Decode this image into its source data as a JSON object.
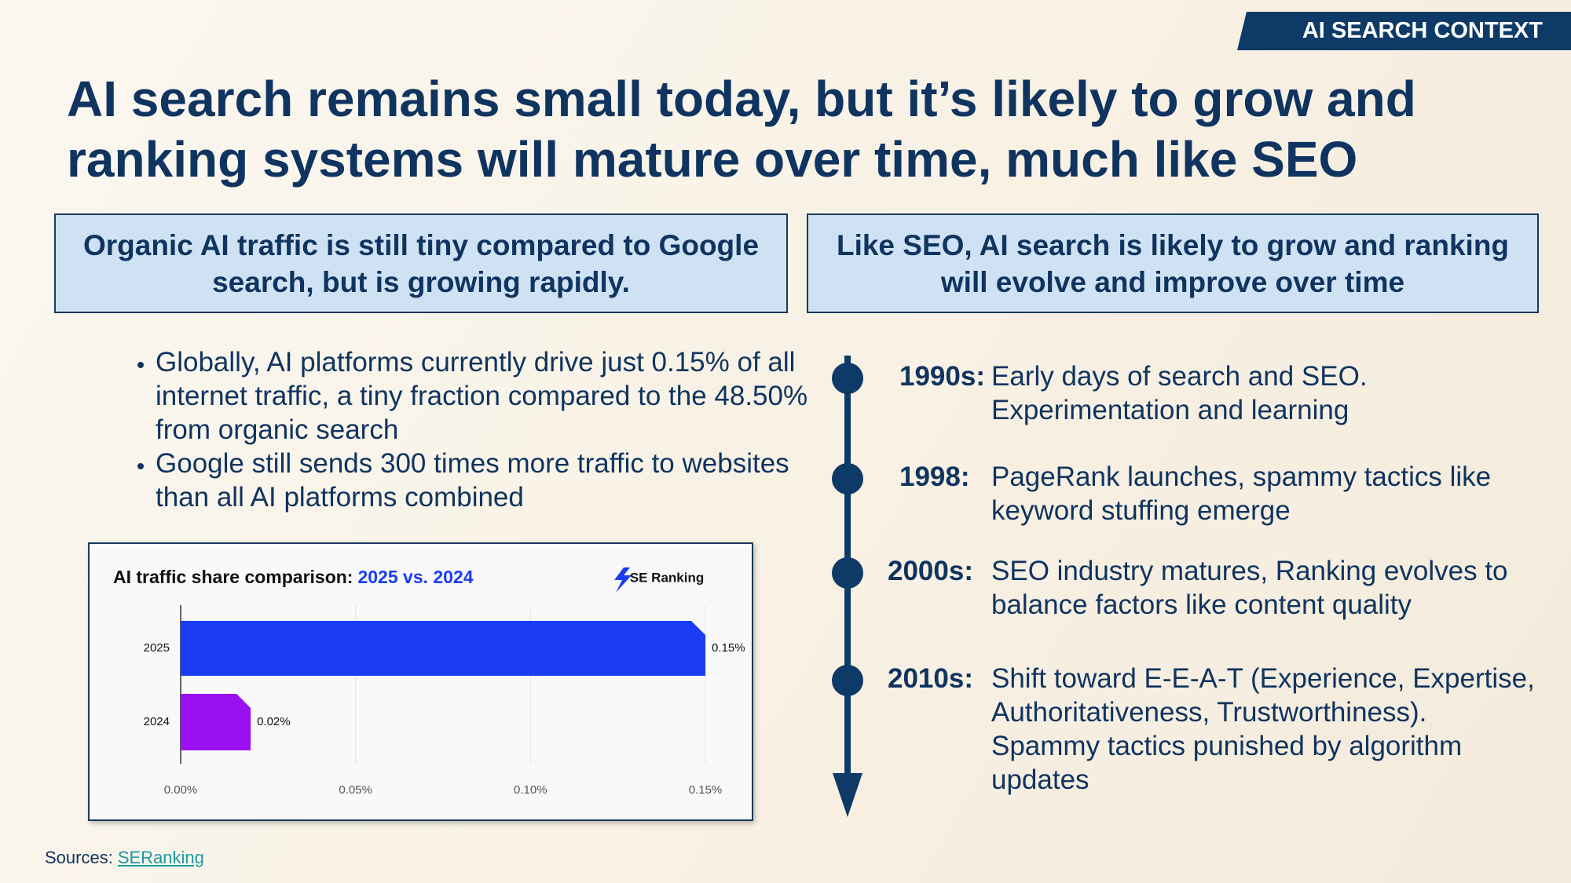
{
  "header": {
    "tag": "AI SEARCH CONTEXT",
    "title": "AI search remains small today, but it’s likely to grow and ranking systems will mature over time, much like SEO"
  },
  "left": {
    "heading": "Organic AI traffic is still tiny compared to Google search, but is growing rapidly.",
    "bullets": [
      "Globally, AI platforms currently drive just 0.15% of all internet traffic, a tiny fraction compared to the 48.50% from organic search",
      "Google still sends 300 times more traffic to websites than all AI platforms combined"
    ]
  },
  "chart_data": {
    "type": "hbar",
    "title": "AI traffic share comparison:",
    "title_highlight": "2025 vs. 2024",
    "brand": "SE Ranking",
    "categories": [
      "2025",
      "2024"
    ],
    "values": [
      0.15,
      0.02
    ],
    "value_labels": [
      "0.15%",
      "0.02%"
    ],
    "colors": [
      "#1a3cf5",
      "#9a10f2"
    ],
    "xlim": [
      0,
      0.15
    ],
    "xticks": [
      {
        "value": 0,
        "label": "0.00%"
      },
      {
        "value": 0.05,
        "label": "0.05%"
      },
      {
        "value": 0.1,
        "label": "0.10%"
      },
      {
        "value": 0.15,
        "label": "0.15%"
      }
    ],
    "grid": true
  },
  "right": {
    "heading": "Like SEO, AI search is likely to grow and ranking will evolve and improve over time",
    "timeline": [
      {
        "period": "1990s:",
        "text": "Early days of search and SEO. Experimentation and learning"
      },
      {
        "period": "1998:",
        "text": "PageRank launches, spammy tactics like keyword stuffing emerge"
      },
      {
        "period": "2000s:",
        "text": "SEO industry matures, Ranking evolves to balance factors like content quality"
      },
      {
        "period": "2010s:",
        "text": "Shift toward E-E-A-T (Experience, Expertise, Authoritativeness, Trustworthiness). Spammy tactics punished by algorithm updates"
      }
    ]
  },
  "sources": {
    "label": "Sources:",
    "link": "SERanking"
  }
}
